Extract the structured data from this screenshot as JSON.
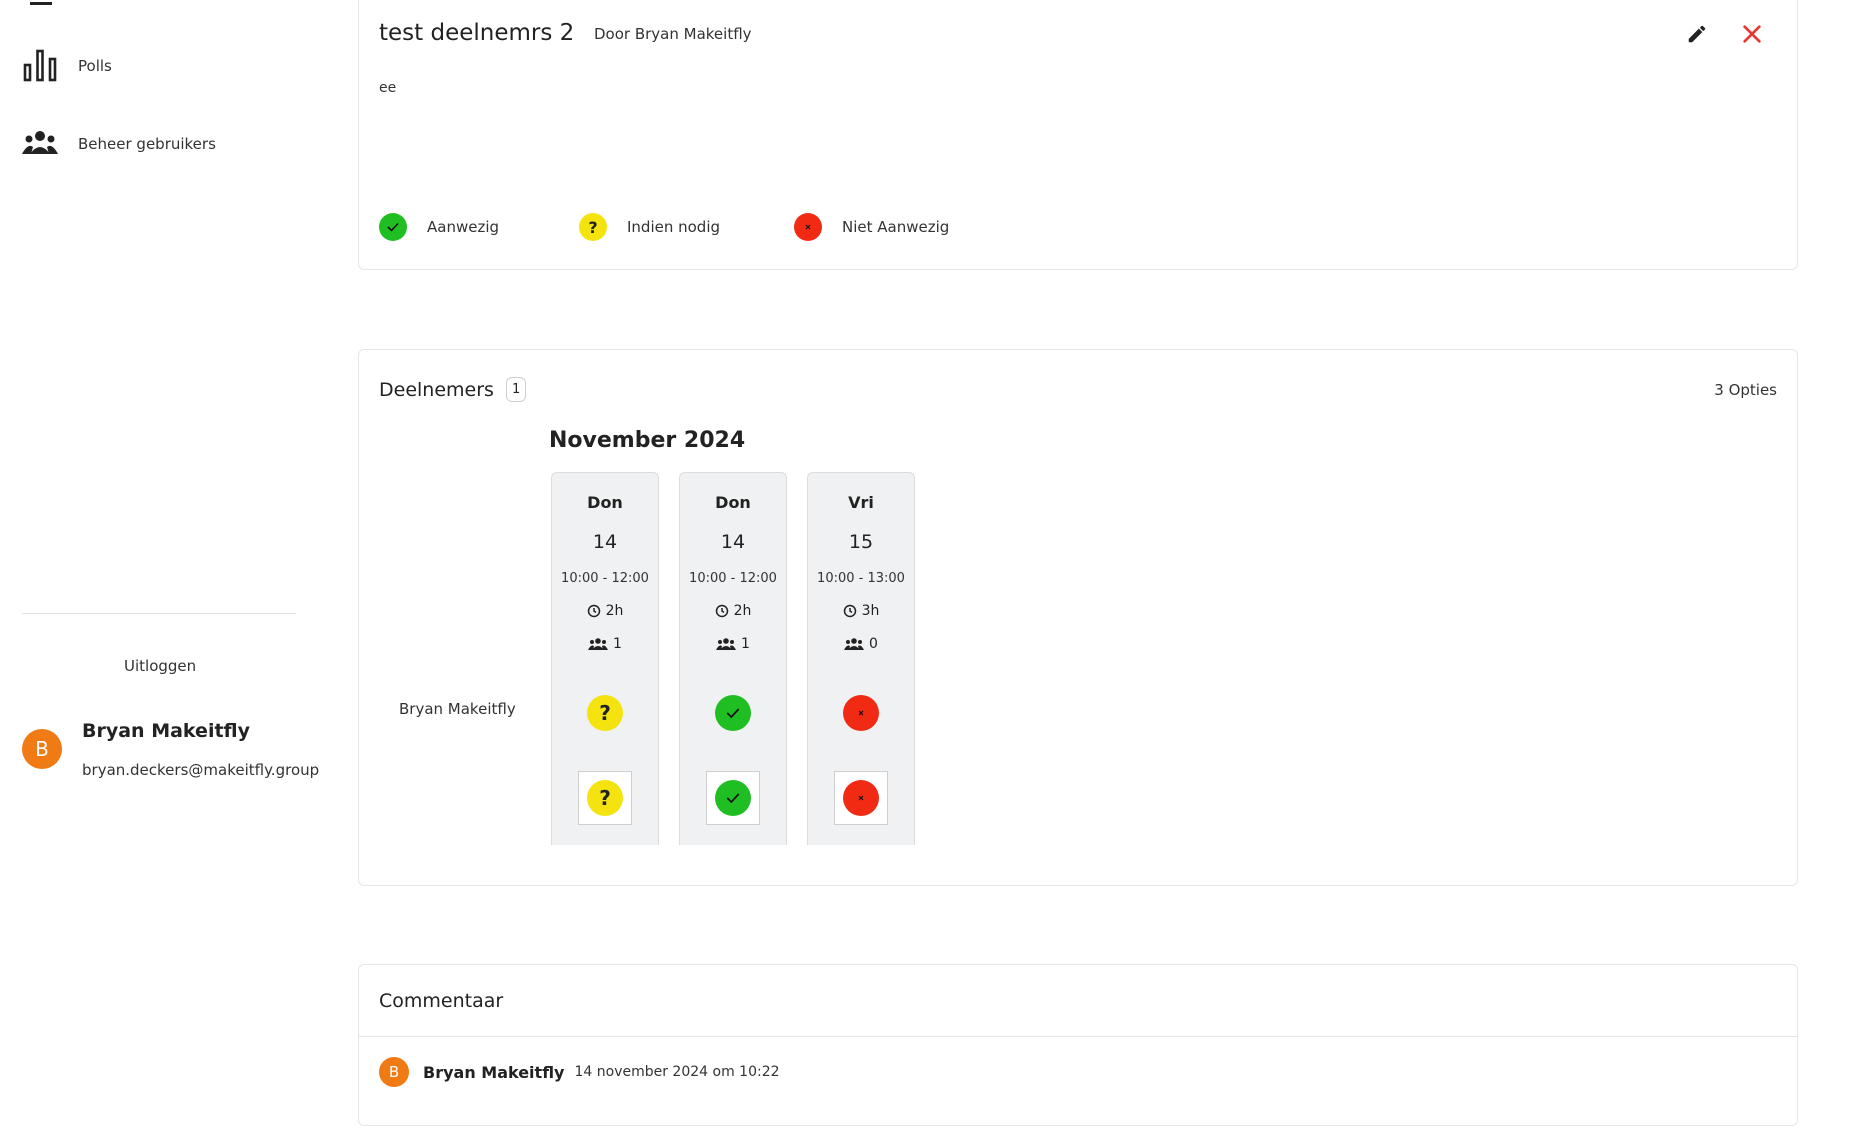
{
  "sidebar": {
    "items": [
      {
        "label": "Polls",
        "icon": "bar-chart-icon"
      },
      {
        "label": "Beheer gebruikers",
        "icon": "group-icon"
      }
    ],
    "logout_label": "Uitloggen",
    "user": {
      "initial": "B",
      "name": "Bryan Makeitfly",
      "email": "bryan.deckers@makeitfly.group"
    }
  },
  "poll": {
    "title": "test deelnemrs 2",
    "author": "Door Bryan Makeitfly",
    "description": "ee",
    "legend": [
      {
        "status": "yes",
        "label": "Aanwezig"
      },
      {
        "status": "maybe",
        "label": "Indien nodig"
      },
      {
        "status": "no",
        "label": "Niet Aanwezig"
      }
    ]
  },
  "participants": {
    "title": "Deelnemers",
    "count": "1",
    "options_label": "3 Opties",
    "month": "November 2024",
    "participant_name": "Bryan Makeitfly",
    "options": [
      {
        "day": "Don",
        "date": "14",
        "time": "10:00 - 12:00",
        "duration": "2h",
        "people": "1",
        "vote": "maybe",
        "selected": "maybe"
      },
      {
        "day": "Don",
        "date": "14",
        "time": "10:00 - 12:00",
        "duration": "2h",
        "people": "1",
        "vote": "yes",
        "selected": "yes"
      },
      {
        "day": "Vri",
        "date": "15",
        "time": "10:00 - 13:00",
        "duration": "3h",
        "people": "0",
        "vote": "no",
        "selected": "no"
      }
    ]
  },
  "comments": {
    "title": "Commentaar",
    "items": [
      {
        "initial": "B",
        "author": "Bryan Makeitfly",
        "time": "14 november 2024 om 10:22"
      }
    ]
  },
  "colors": {
    "yes": "#1fbf24",
    "maybe": "#f4e30f",
    "no": "#f02a13",
    "avatar": "#f07a13",
    "close": "#e53935"
  }
}
